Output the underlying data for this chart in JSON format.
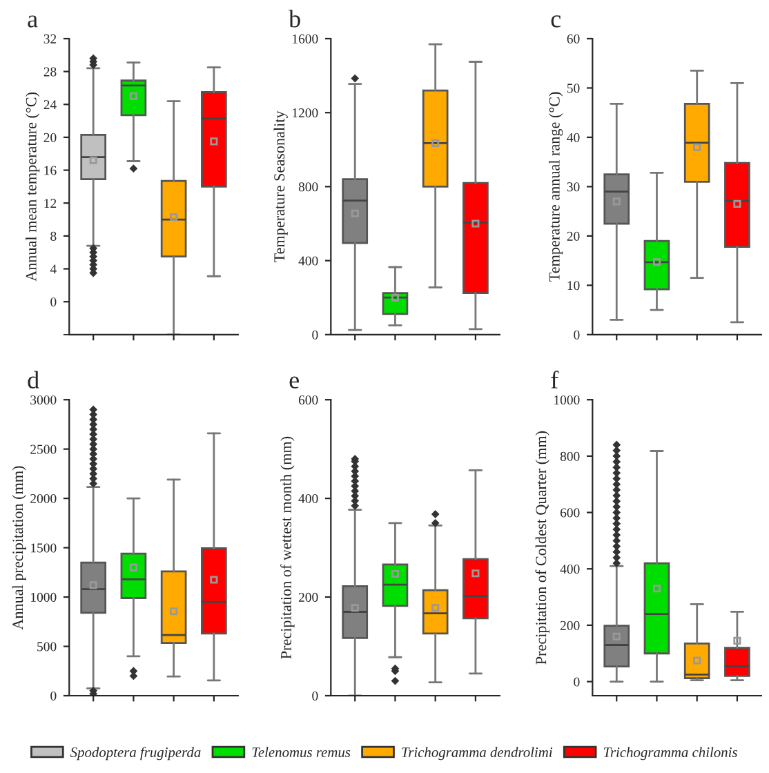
{
  "chart_data": [
    {
      "type": "box",
      "title": "a",
      "ylabel": "Annual mean temperature (°C)",
      "categories": [
        null,
        null,
        null,
        null
      ],
      "ylim": [
        -4,
        32
      ],
      "yticks": [
        {
          "value": -4,
          "label": null
        },
        0,
        4,
        8,
        12,
        16,
        20,
        24,
        28,
        32
      ],
      "legend": "bottom",
      "series": [
        {
          "name": "Spodoptera frugiperda",
          "color": "#c0c0c0",
          "boxes": [
            {
              "low": 6.8,
              "q1": 14.9,
              "median": 17.6,
              "q3": 20.3,
              "high": 28.4,
              "mean": 17.2,
              "outliers": [
                28.8,
                29.2,
                29.6,
                6.5,
                6.0,
                5.5,
                5.0,
                4.5,
                4.0,
                3.5
              ]
            },
            null,
            null,
            null
          ]
        },
        {
          "name": "Telenomus remus",
          "color": "#00dd00",
          "boxes": [
            null,
            {
              "low": 17.1,
              "q1": 22.7,
              "median": 26.3,
              "q3": 26.9,
              "high": 29.1,
              "mean": 25.0,
              "outliers": [
                16.2
              ]
            },
            null,
            null
          ]
        },
        {
          "name": "Trichogramma dendrolimi",
          "color": "#ffaa00",
          "boxes": [
            null,
            null,
            {
              "low": -4,
              "q1": 5.5,
              "median": 10.0,
              "q3": 14.7,
              "high": 24.4,
              "mean": 10.3
            },
            null
          ]
        },
        {
          "name": "Trichogramma chilonis",
          "color": "#ff0000",
          "boxes": [
            null,
            null,
            null,
            {
              "low": 3.1,
              "q1": 14.0,
              "median": 22.3,
              "q3": 25.5,
              "high": 28.5,
              "mean": 19.5
            }
          ]
        }
      ]
    },
    {
      "type": "box",
      "title": "b",
      "ylabel": "Temperature Seasonality",
      "categories": [
        null,
        null,
        null,
        null
      ],
      "ylim": [
        0,
        1600
      ],
      "yticks": [
        0,
        400,
        800,
        1200,
        1600
      ],
      "colors": [
        "#808080",
        "#00dd00",
        "#ffaa00",
        "#ff0000"
      ],
      "boxes": [
        {
          "low": 25,
          "q1": 495,
          "median": 725,
          "q3": 840,
          "high": 1355,
          "mean": 655,
          "outliers": [
            1385
          ]
        },
        {
          "low": 50,
          "q1": 112,
          "median": 200,
          "q3": 225,
          "high": 365,
          "mean": 200
        },
        {
          "low": 255,
          "q1": 800,
          "median": 1035,
          "q3": 1320,
          "high": 1570,
          "mean": 1035
        },
        {
          "low": 30,
          "q1": 225,
          "median": 605,
          "q3": 820,
          "high": 1475,
          "mean": 600
        }
      ]
    },
    {
      "type": "box",
      "title": "c",
      "ylabel": "Temperature annual range (°C)",
      "categories": [
        null,
        null,
        null,
        null
      ],
      "ylim": [
        0,
        60
      ],
      "yticks": [
        0,
        10,
        20,
        30,
        40,
        50,
        60
      ],
      "colors": [
        "#808080",
        "#00dd00",
        "#ffaa00",
        "#ff0000"
      ],
      "boxes": [
        {
          "low": 3,
          "q1": 22.5,
          "median": 29,
          "q3": 32.5,
          "high": 46.8,
          "mean": 27
        },
        {
          "low": 5,
          "q1": 9.2,
          "median": 14.7,
          "q3": 19,
          "high": 32.8,
          "mean": 14.7
        },
        {
          "low": 11.5,
          "q1": 31,
          "median": 38.9,
          "q3": 46.8,
          "high": 53.5,
          "mean": 38
        },
        {
          "low": 2.5,
          "q1": 17.8,
          "median": 27.1,
          "q3": 34.8,
          "high": 51,
          "mean": 26.5
        }
      ]
    },
    {
      "type": "box",
      "title": "d",
      "ylabel": "Annual precipitation (mm)",
      "categories": [
        null,
        null,
        null,
        null
      ],
      "ylim": [
        0,
        3000
      ],
      "yticks": [
        0,
        500,
        1000,
        1500,
        2000,
        2500,
        3000
      ],
      "colors": [
        "#808080",
        "#00dd00",
        "#ffaa00",
        "#ff0000"
      ],
      "boxes": [
        {
          "low": 75,
          "q1": 840,
          "median": 1080,
          "q3": 1350,
          "high": 2115,
          "mean": 1120,
          "outliers": [
            2150,
            2200,
            2250,
            2300,
            2350,
            2400,
            2450,
            2500,
            2550,
            2600,
            2650,
            2700,
            2750,
            2800,
            2850,
            2900,
            50,
            20
          ]
        },
        {
          "low": 400,
          "q1": 990,
          "median": 1180,
          "q3": 1440,
          "high": 2000,
          "mean": 1300,
          "outliers": [
            250,
            200
          ]
        },
        {
          "low": 195,
          "q1": 535,
          "median": 615,
          "q3": 1260,
          "high": 2190,
          "mean": 855
        },
        {
          "low": 155,
          "q1": 630,
          "median": 950,
          "q3": 1495,
          "high": 2660,
          "mean": 1175
        }
      ]
    },
    {
      "type": "box",
      "title": "e",
      "ylabel": "Precipitation of wettest month (mm)",
      "categories": [
        null,
        null,
        null,
        null
      ],
      "ylim": [
        0,
        600
      ],
      "yticks": [
        0,
        200,
        400,
        600
      ],
      "colors": [
        "#808080",
        "#00dd00",
        "#ffaa00",
        "#ff0000"
      ],
      "boxes": [
        {
          "low": 0,
          "q1": 117,
          "median": 170,
          "q3": 222,
          "high": 377,
          "mean": 178,
          "outliers": [
            385,
            395,
            405,
            415,
            425,
            435,
            445,
            455,
            465,
            475,
            480
          ]
        },
        {
          "low": 78,
          "q1": 182,
          "median": 225,
          "q3": 266,
          "high": 350,
          "mean": 247,
          "outliers": [
            55,
            50,
            30
          ]
        },
        {
          "low": 27,
          "q1": 126,
          "median": 167,
          "q3": 214,
          "high": 345,
          "mean": 178,
          "outliers": [
            350,
            368
          ]
        },
        {
          "low": 45,
          "q1": 157,
          "median": 202,
          "q3": 277,
          "high": 457,
          "mean": 248
        }
      ]
    },
    {
      "type": "box",
      "title": "f",
      "ylabel": "Precipitation of Coldest Quarter (mm)",
      "categories": [
        null,
        null,
        null,
        null
      ],
      "ylim": [
        -50,
        1000
      ],
      "yticks": [
        0,
        200,
        400,
        600,
        800,
        1000
      ],
      "colors": [
        "#808080",
        "#00dd00",
        "#ffaa00",
        "#ff0000"
      ],
      "boxes": [
        {
          "low": 0,
          "q1": 54,
          "median": 130,
          "q3": 198,
          "high": 410,
          "mean": 160,
          "outliers": [
            420,
            440,
            460,
            480,
            500,
            520,
            540,
            560,
            580,
            600,
            620,
            640,
            660,
            680,
            700,
            720,
            740,
            760,
            780,
            800,
            820,
            840
          ]
        },
        {
          "low": 0,
          "q1": 100,
          "median": 240,
          "q3": 420,
          "high": 818,
          "mean": 330
        },
        {
          "low": 5,
          "q1": 12,
          "median": 25,
          "q3": 135,
          "high": 275,
          "mean": 75
        },
        {
          "low": 5,
          "q1": 20,
          "median": 55,
          "q3": 120,
          "high": 248,
          "mean": 145
        }
      ]
    }
  ]
}
